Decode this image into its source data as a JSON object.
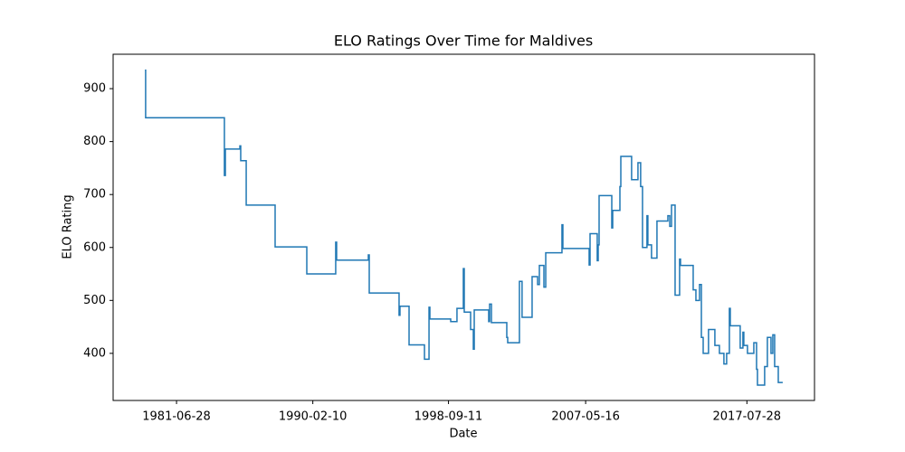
{
  "chart_data": {
    "type": "step",
    "title": "ELO Ratings Over Time for Maldives",
    "x_label": "Date",
    "y_label": "ELO Rating",
    "color": "#1f77b4",
    "x": [
      "1979-06-28",
      "1979-07-15",
      "1984-07-08",
      "1984-07-30",
      "1985-07-01",
      "1985-07-20",
      "1985-11-24",
      "1987-09-23",
      "1989-09-24",
      "1991-07-24",
      "1991-08-14",
      "1993-08-16",
      "1993-09-06",
      "1995-07-27",
      "1995-08-17",
      "1996-03-14",
      "1997-03-05",
      "1997-06-18",
      "1997-07-08",
      "1998-11-01",
      "1999-03-26",
      "1999-08-20",
      "1999-09-10",
      "2000-02-04",
      "2000-04-07",
      "2000-04-28",
      "2001-03-28",
      "2001-04-18",
      "2001-05-30",
      "2002-05-20",
      "2002-06-10",
      "2003-03-08",
      "2003-05-08",
      "2003-12-26",
      "2004-05-01",
      "2004-06-11",
      "2004-09-24",
      "2004-11-05",
      "2005-11-15",
      "2005-12-06",
      "2007-08-05",
      "2007-08-26",
      "2008-02-08",
      "2008-03-01",
      "2008-03-22",
      "2009-01-09",
      "2009-01-30",
      "2009-07-16",
      "2009-08-06",
      "2010-04-12",
      "2010-09-06",
      "2010-11-07",
      "2010-12-20",
      "2011-04-02",
      "2011-04-23",
      "2011-07-16",
      "2011-11-19",
      "2012-07-28",
      "2012-09-09",
      "2012-10-20",
      "2013-01-11",
      "2013-04-25",
      "2013-05-16",
      "2014-03-05",
      "2014-05-07",
      "2014-07-29",
      "2014-09-10",
      "2014-10-22",
      "2015-02-22",
      "2015-07-19",
      "2015-11-01",
      "2016-02-13",
      "2016-04-16",
      "2016-06-18",
      "2016-07-09",
      "2017-02-23",
      "2017-04-27",
      "2017-05-18",
      "2017-08-10",
      "2018-01-04",
      "2018-03-08",
      "2018-03-29",
      "2018-09-11",
      "2018-11-13",
      "2019-02-05",
      "2019-03-19",
      "2019-04-30",
      "2019-07-23",
      "2019-11-03"
    ],
    "values": [
      935,
      845,
      736,
      786,
      792,
      764,
      680,
      601,
      550,
      610,
      576,
      586,
      514,
      472,
      489,
      416,
      389,
      487,
      465,
      460,
      485,
      560,
      478,
      445,
      408,
      482,
      460,
      493,
      458,
      430,
      420,
      536,
      468,
      545,
      530,
      566,
      525,
      590,
      643,
      598,
      567,
      626,
      575,
      605,
      698,
      637,
      670,
      715,
      772,
      728,
      760,
      715,
      600,
      660,
      605,
      580,
      650,
      660,
      640,
      680,
      510,
      578,
      566,
      520,
      500,
      530,
      430,
      400,
      445,
      415,
      400,
      380,
      400,
      485,
      452,
      410,
      440,
      415,
      400,
      420,
      370,
      340,
      375,
      430,
      400,
      435,
      375,
      345,
      345
    ],
    "xlim": [
      "1977-06-24",
      "2021-11-06"
    ],
    "xticks": [
      "1981-06-28",
      "1990-02-10",
      "1998-09-11",
      "2007-05-16",
      "2017-07-28"
    ],
    "ylim": [
      311,
      965
    ],
    "yticks": [
      400,
      500,
      600,
      700,
      800,
      900
    ]
  }
}
